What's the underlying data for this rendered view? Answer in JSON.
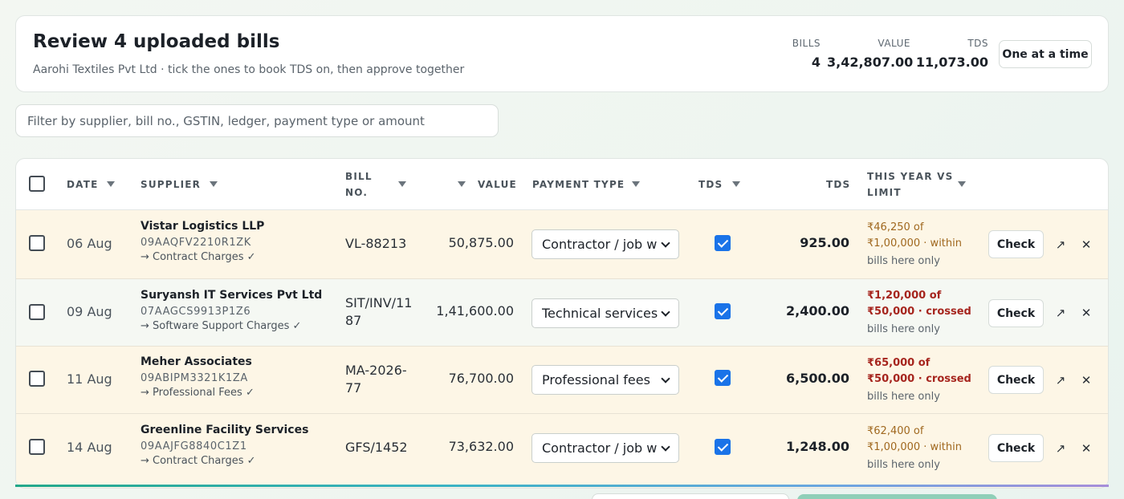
{
  "header": {
    "title": "Review 4 uploaded bills",
    "subtitle": "Aarohi Textiles Pvt Ltd · tick the ones to book TDS on, then approve together",
    "stats": [
      {
        "label": "BILLS",
        "value": "4"
      },
      {
        "label": "VALUE",
        "value": "3,42,807.00"
      },
      {
        "label": "TDS",
        "value": "11,073.00"
      }
    ],
    "one_at_a_time_label": "One at a time"
  },
  "filter": {
    "placeholder": "Filter by supplier, bill no., GSTIN, ledger, payment type or amount"
  },
  "table": {
    "headers": {
      "date": "DATE",
      "supplier": "SUPPLIER",
      "bill_no": "BILL NO.",
      "value": "VALUE",
      "payment_type": "PAYMENT TYPE",
      "tds_flag": "TDS",
      "tds_amount": "TDS",
      "limit": "THIS YEAR VS LIMIT"
    },
    "rows": [
      {
        "selected": false,
        "date": "06 Aug",
        "supplier": "Vistar Logistics LLP",
        "gstin": "09AAQFV2210R1ZK",
        "ledger": "→ Contract Charges ✓",
        "bill_no": "VL-88213",
        "value": "50,875.00",
        "payment_type": "Contractor / job work",
        "tds_checked": true,
        "tds": "925.00",
        "limit_line1": "₹46,250 of ₹1,00,000 · within",
        "limit_status": "within",
        "limit_line2": "bills here only",
        "check_label": "Check",
        "tint": "warm"
      },
      {
        "selected": false,
        "date": "09 Aug",
        "supplier": "Suryansh IT Services Pvt Ltd",
        "gstin": "07AAGCS9913P1Z6",
        "ledger": "→ Software Support Charges ✓",
        "bill_no": "SIT/INV/1187",
        "value": "1,41,600.00",
        "payment_type": "Technical services",
        "tds_checked": true,
        "tds": "2,400.00",
        "limit_line1": "₹1,20,000 of ₹50,000 · crossed",
        "limit_status": "crossed",
        "limit_line2": "bills here only",
        "check_label": "Check",
        "tint": "cool"
      },
      {
        "selected": false,
        "date": "11 Aug",
        "supplier": "Meher Associates",
        "gstin": "09ABIPM3321K1ZA",
        "ledger": "→ Professional Fees ✓",
        "bill_no": "MA-2026-77",
        "value": "76,700.00",
        "payment_type": "Professional fees",
        "tds_checked": true,
        "tds": "6,500.00",
        "limit_line1": "₹65,000 of ₹50,000 · crossed",
        "limit_status": "crossed",
        "limit_line2": "bills here only",
        "check_label": "Check",
        "tint": "warm"
      },
      {
        "selected": false,
        "date": "14 Aug",
        "supplier": "Greenline Facility Services",
        "gstin": "09AAJFG8840C1Z1",
        "ledger": "→ Contract Charges ✓",
        "bill_no": "GFS/1452",
        "value": "73,632.00",
        "payment_type": "Contractor / job work",
        "tds_checked": true,
        "tds": "1,248.00",
        "limit_line1": "₹62,400 of ₹1,00,000 · within",
        "limit_status": "within",
        "limit_line2": "bills here only",
        "check_label": "Check",
        "tint": "warm"
      }
    ],
    "row_actions": {
      "open_icon": "external-link-icon",
      "remove_icon": "close-icon"
    }
  }
}
